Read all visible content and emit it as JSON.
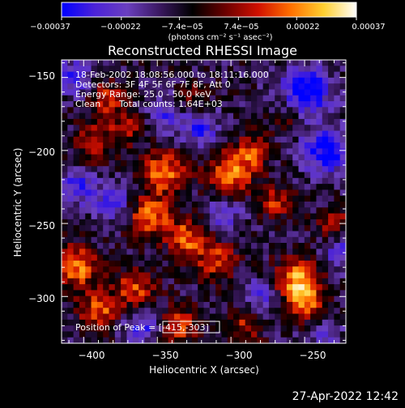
{
  "chart_data": {
    "type": "heatmap",
    "title": "Reconstructed RHESSI Image",
    "xlabel": "Heliocentric X (arcsec)",
    "ylabel": "Heliocentric Y (arcsec)",
    "xlim": [
      -415,
      -222
    ],
    "ylim": [
      -332,
      -138
    ],
    "x_ticks": [
      -400,
      -350,
      -300,
      -250
    ],
    "y_ticks": [
      -150,
      -200,
      -250,
      -300
    ],
    "x_tick_labels": [
      "−400",
      "−350",
      "−300",
      "−250"
    ],
    "y_tick_labels": [
      "−150",
      "−200",
      "−250",
      "−300"
    ],
    "colorbar": {
      "min": -0.00037,
      "max": 0.00037,
      "ticks": [
        -0.00037,
        -0.00022,
        -7.4e-05,
        7.4e-05,
        0.00022,
        0.00037
      ],
      "tick_labels": [
        "−0.00037",
        "−0.00022",
        "−7.4e−05",
        "7.4e−05",
        "0.00022",
        "0.00037"
      ],
      "unit_label": "(photons cm⁻² s⁻¹ asec⁻²)",
      "colors": [
        "#0000ff",
        "#4b22d8",
        "#6a3fbf",
        "#3a1860",
        "#000000",
        "#6b0000",
        "#d01000",
        "#ff7000",
        "#ffd030",
        "#ffffff"
      ]
    },
    "annotations": {
      "time_range": "18-Feb-2002 18:08:56.000 to 18:11:16.000",
      "detectors": "Detectors: 3F 4F 5F 6F 7F 8F, Att 0",
      "energy": "Energy Range: 25.0 - 50.0 keV",
      "method": "Clean",
      "counts": "Total counts: 1.64E+03",
      "peak": "Position of Peak = [-415,-303]"
    },
    "peak": {
      "x": -415,
      "y": -303
    },
    "grid": false,
    "bright_sources": [
      {
        "x": -385,
        "y": -165,
        "amp": 0.6,
        "sigma": 9
      },
      {
        "x": -392,
        "y": -195,
        "amp": 0.55,
        "sigma": 9
      },
      {
        "x": -370,
        "y": -185,
        "amp": 0.5,
        "sigma": 8
      },
      {
        "x": -345,
        "y": -215,
        "amp": 0.85,
        "sigma": 10
      },
      {
        "x": -355,
        "y": -245,
        "amp": 0.8,
        "sigma": 10
      },
      {
        "x": -330,
        "y": -260,
        "amp": 0.75,
        "sigma": 9
      },
      {
        "x": -300,
        "y": -215,
        "amp": 0.8,
        "sigma": 11
      },
      {
        "x": -285,
        "y": -200,
        "amp": 0.6,
        "sigma": 8
      },
      {
        "x": -310,
        "y": -275,
        "amp": 0.6,
        "sigma": 10
      },
      {
        "x": -405,
        "y": -280,
        "amp": 0.85,
        "sigma": 10
      },
      {
        "x": -390,
        "y": -310,
        "amp": 0.7,
        "sigma": 9
      },
      {
        "x": -365,
        "y": -295,
        "amp": 0.65,
        "sigma": 10
      },
      {
        "x": -255,
        "y": -290,
        "amp": 0.95,
        "sigma": 11
      },
      {
        "x": -245,
        "y": -310,
        "amp": 0.8,
        "sigma": 9
      },
      {
        "x": -270,
        "y": -235,
        "amp": 0.55,
        "sigma": 8
      },
      {
        "x": -230,
        "y": -250,
        "amp": 0.5,
        "sigma": 8
      },
      {
        "x": -335,
        "y": -320,
        "amp": 0.65,
        "sigma": 9
      },
      {
        "x": -290,
        "y": -320,
        "amp": 0.5,
        "sigma": 8
      },
      {
        "x": -260,
        "y": -175,
        "amp": 0.35,
        "sigma": 8
      },
      {
        "x": -325,
        "y": -165,
        "amp": 0.35,
        "sigma": 8
      }
    ],
    "dark_sources": [
      {
        "x": -250,
        "y": -160,
        "amp": -0.9,
        "sigma": 12
      },
      {
        "x": -235,
        "y": -200,
        "amp": -0.85,
        "sigma": 11
      },
      {
        "x": -240,
        "y": -320,
        "amp": -0.6,
        "sigma": 9
      },
      {
        "x": -320,
        "y": -185,
        "amp": -0.55,
        "sigma": 9
      },
      {
        "x": -345,
        "y": -175,
        "amp": -0.5,
        "sigma": 9
      },
      {
        "x": -405,
        "y": -225,
        "amp": -0.55,
        "sigma": 9
      },
      {
        "x": -380,
        "y": -235,
        "amp": -0.5,
        "sigma": 9
      },
      {
        "x": -405,
        "y": -150,
        "amp": -0.55,
        "sigma": 9
      },
      {
        "x": -360,
        "y": -320,
        "amp": -0.6,
        "sigma": 9
      },
      {
        "x": -305,
        "y": -245,
        "amp": -0.45,
        "sigma": 9
      },
      {
        "x": -280,
        "y": -300,
        "amp": -0.45,
        "sigma": 9
      },
      {
        "x": -225,
        "y": -270,
        "amp": -0.5,
        "sigma": 9
      }
    ],
    "grid_resolution": [
      48,
      48
    ]
  },
  "footer": {
    "timestamp": "27-Apr-2022 12:42"
  }
}
